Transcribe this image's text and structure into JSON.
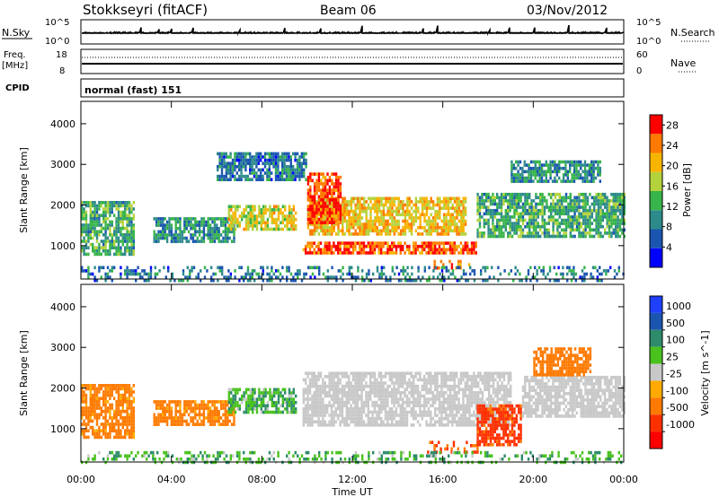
{
  "header": {
    "station": "Stokkseyri (fitACF)",
    "beam": "Beam 06",
    "date": "03/Nov/2012"
  },
  "strips": {
    "nsky_label": "N.Sky",
    "nsky_top": "10^5",
    "nsky_bottom": "10^0",
    "nsearch_top": "10^5",
    "nsearch_bottom": "10^0",
    "nsearch_label": "N.Search",
    "freq_label_1": "Freq.",
    "freq_label_2": "[MHz]",
    "freq_top": "18",
    "freq_bottom": "8",
    "nave_top": "60",
    "nave_bottom": "0",
    "nave_label": "Nave",
    "cpid_label": "CPID",
    "cpid_value": "normal (fast) 151"
  },
  "chart_data": [
    {
      "type": "heatmap",
      "name": "power",
      "xlabel": "Time UT",
      "ylabel": "Slant Range [km]",
      "x_ticks": [
        "00:00",
        "04:00",
        "08:00",
        "12:00",
        "16:00",
        "20:00",
        "00:00"
      ],
      "x_range_hours": [
        0,
        24
      ],
      "y_ticks": [
        1000,
        2000,
        3000,
        4000
      ],
      "ylim": [
        180,
        4550
      ],
      "colorbar": {
        "label": "Power [dB]",
        "ticks": [
          4,
          8,
          12,
          16,
          20,
          24,
          28
        ],
        "range": [
          0,
          30
        ],
        "colors": [
          "#0000ff",
          "#1a55b0",
          "#2d8a8a",
          "#37b44a",
          "#b4d23c",
          "#f7b400",
          "#ff7a00",
          "#ff0000"
        ]
      },
      "regions": [
        {
          "t0": 0.0,
          "t1": 2.3,
          "r0": 800,
          "r1": 2100,
          "v": 12
        },
        {
          "t0": 3.2,
          "t1": 6.8,
          "r0": 1100,
          "r1": 1700,
          "v": 10
        },
        {
          "t0": 6.5,
          "t1": 9.5,
          "r0": 1400,
          "r1": 2000,
          "v": 18
        },
        {
          "t0": 9.8,
          "t1": 17.5,
          "r0": 800,
          "r1": 1100,
          "v": 26
        },
        {
          "t0": 10.0,
          "t1": 17.0,
          "r0": 1300,
          "r1": 2200,
          "v": 20
        },
        {
          "t0": 10.0,
          "t1": 11.5,
          "r0": 1600,
          "r1": 2800,
          "v": 27
        },
        {
          "t0": 15.5,
          "t1": 17.2,
          "r0": 450,
          "r1": 650,
          "v": 24
        },
        {
          "t0": 17.5,
          "t1": 24.0,
          "r0": 1200,
          "r1": 2300,
          "v": 12
        },
        {
          "t0": 0.0,
          "t1": 24.0,
          "r0": 180,
          "r1": 500,
          "v": 8
        },
        {
          "t0": 6.0,
          "t1": 10.0,
          "r0": 2600,
          "r1": 3300,
          "v": 8
        },
        {
          "t0": 19.0,
          "t1": 23.0,
          "r0": 2600,
          "r1": 3100,
          "v": 10
        }
      ]
    },
    {
      "type": "heatmap",
      "name": "velocity",
      "xlabel": "Time UT",
      "ylabel": "Slant Range [km]",
      "x_ticks": [
        "00:00",
        "04:00",
        "08:00",
        "12:00",
        "16:00",
        "20:00",
        "00:00"
      ],
      "x_range_hours": [
        0,
        24
      ],
      "y_ticks": [
        1000,
        2000,
        3000,
        4000
      ],
      "ylim": [
        180,
        4550
      ],
      "colorbar": {
        "label": "Velocity [m s^-1]",
        "ticks": [
          "1000",
          "500",
          "100",
          "25",
          "-25",
          "-100",
          "-500",
          "-1000"
        ],
        "colors": [
          "#2040ff",
          "#1a55b0",
          "#2d8a6a",
          "#49c21e",
          "#c8c8c8",
          "#ffaa00",
          "#ff7a00",
          "#ff3000",
          "#ff0000"
        ]
      },
      "regions": [
        {
          "t0": 0.0,
          "t1": 2.3,
          "r0": 800,
          "r1": 2100,
          "v": -100
        },
        {
          "t0": 3.2,
          "t1": 6.8,
          "r0": 1100,
          "r1": 1700,
          "v": -100
        },
        {
          "t0": 6.5,
          "t1": 9.5,
          "r0": 1400,
          "r1": 2000,
          "v": 50
        },
        {
          "t0": 9.8,
          "t1": 19.0,
          "r0": 1100,
          "r1": 2400,
          "v": 0
        },
        {
          "t0": 15.3,
          "t1": 17.5,
          "r0": 450,
          "r1": 700,
          "v": -300
        },
        {
          "t0": 17.5,
          "t1": 19.5,
          "r0": 600,
          "r1": 1600,
          "v": -400
        },
        {
          "t0": 19.5,
          "t1": 24.0,
          "r0": 1300,
          "r1": 2300,
          "v": 0
        },
        {
          "t0": 0.0,
          "t1": 24.0,
          "r0": 180,
          "r1": 450,
          "v": 50
        },
        {
          "t0": 20.0,
          "t1": 22.5,
          "r0": 2300,
          "r1": 3000,
          "v": -150
        }
      ]
    }
  ]
}
